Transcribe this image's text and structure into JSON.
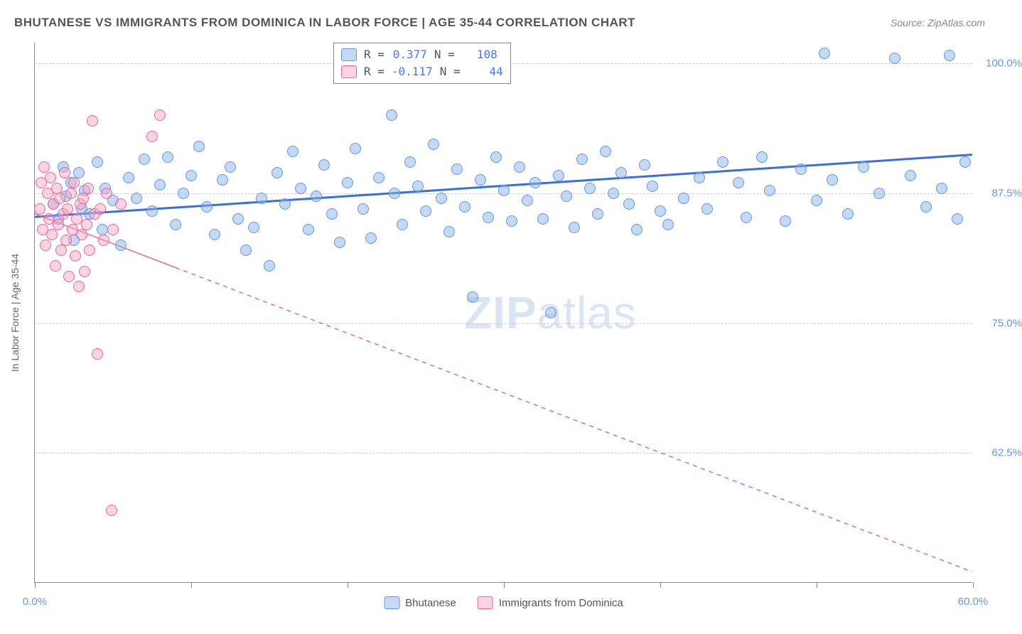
{
  "header": {
    "title": "BHUTANESE VS IMMIGRANTS FROM DOMINICA IN LABOR FORCE | AGE 35-44 CORRELATION CHART",
    "source": "Source: ZipAtlas.com"
  },
  "watermark": {
    "prefix": "ZIP",
    "suffix": "atlas"
  },
  "chart": {
    "type": "scatter",
    "background_color": "#ffffff",
    "grid_color": "#cccccc",
    "axis_color": "#888888",
    "y_axis_label": "In Labor Force | Age 35-44",
    "y_axis_label_fontsize": 14,
    "xlim": [
      0,
      60
    ],
    "ylim": [
      50,
      102
    ],
    "x_ticks": [
      0,
      10,
      20,
      30,
      40,
      50,
      60
    ],
    "x_tick_labels": {
      "0": "0.0%",
      "60": "60.0%"
    },
    "y_gridlines": [
      62.5,
      75.0,
      87.5,
      100.0
    ],
    "y_tick_labels": [
      "62.5%",
      "75.0%",
      "87.5%",
      "100.0%"
    ],
    "tick_label_color": "#6495ED",
    "point_radius": 8,
    "series": [
      {
        "name": "Bhutanese",
        "color_fill": "rgba(135,180,235,0.5)",
        "color_stroke": "#6495ED",
        "R": "0.377",
        "N": "108",
        "trend": {
          "x1": 0,
          "y1": 85.2,
          "x2": 60,
          "y2": 91.2,
          "color": "#3B6FD8",
          "width": 3,
          "dash": "none"
        },
        "points": [
          [
            1.2,
            86.5
          ],
          [
            1.5,
            85.0
          ],
          [
            1.8,
            90.0
          ],
          [
            2.0,
            87.2
          ],
          [
            2.3,
            88.5
          ],
          [
            2.5,
            83.0
          ],
          [
            2.8,
            89.5
          ],
          [
            3.0,
            86.0
          ],
          [
            3.2,
            87.8
          ],
          [
            3.5,
            85.5
          ],
          [
            4.0,
            90.5
          ],
          [
            4.3,
            84.0
          ],
          [
            4.5,
            88.0
          ],
          [
            5.0,
            86.8
          ],
          [
            5.5,
            82.5
          ],
          [
            6.0,
            89.0
          ],
          [
            6.5,
            87.0
          ],
          [
            7.0,
            90.8
          ],
          [
            7.5,
            85.8
          ],
          [
            8.0,
            88.3
          ],
          [
            8.5,
            91.0
          ],
          [
            9.0,
            84.5
          ],
          [
            9.5,
            87.5
          ],
          [
            10.0,
            89.2
          ],
          [
            10.5,
            92.0
          ],
          [
            11.0,
            86.2
          ],
          [
            11.5,
            83.5
          ],
          [
            12.0,
            88.8
          ],
          [
            12.5,
            90.0
          ],
          [
            13.0,
            85.0
          ],
          [
            13.5,
            82.0
          ],
          [
            14.0,
            84.2
          ],
          [
            14.5,
            87.0
          ],
          [
            15.0,
            80.5
          ],
          [
            15.5,
            89.5
          ],
          [
            16.0,
            86.5
          ],
          [
            16.5,
            91.5
          ],
          [
            17.0,
            88.0
          ],
          [
            17.5,
            84.0
          ],
          [
            18.0,
            87.2
          ],
          [
            18.5,
            90.2
          ],
          [
            19.0,
            85.5
          ],
          [
            19.5,
            82.8
          ],
          [
            20.0,
            88.5
          ],
          [
            20.5,
            91.8
          ],
          [
            21.0,
            86.0
          ],
          [
            21.5,
            83.2
          ],
          [
            22.0,
            89.0
          ],
          [
            22.8,
            95.0
          ],
          [
            23.0,
            87.5
          ],
          [
            23.5,
            84.5
          ],
          [
            24.0,
            90.5
          ],
          [
            24.5,
            88.2
          ],
          [
            25.0,
            85.8
          ],
          [
            25.5,
            92.2
          ],
          [
            26.0,
            87.0
          ],
          [
            26.5,
            83.8
          ],
          [
            27.0,
            89.8
          ],
          [
            27.5,
            86.2
          ],
          [
            28.0,
            77.5
          ],
          [
            28.5,
            88.8
          ],
          [
            29.0,
            85.2
          ],
          [
            29.5,
            91.0
          ],
          [
            30.0,
            87.8
          ],
          [
            30.5,
            84.8
          ],
          [
            31.0,
            90.0
          ],
          [
            31.5,
            86.8
          ],
          [
            32.0,
            88.5
          ],
          [
            32.5,
            85.0
          ],
          [
            33.0,
            76.0
          ],
          [
            33.5,
            89.2
          ],
          [
            34.0,
            87.2
          ],
          [
            34.5,
            84.2
          ],
          [
            35.0,
            90.8
          ],
          [
            35.5,
            88.0
          ],
          [
            36.0,
            85.5
          ],
          [
            36.5,
            91.5
          ],
          [
            37.0,
            87.5
          ],
          [
            37.5,
            89.5
          ],
          [
            38.0,
            86.5
          ],
          [
            38.5,
            84.0
          ],
          [
            39.0,
            90.2
          ],
          [
            39.5,
            88.2
          ],
          [
            40.0,
            85.8
          ],
          [
            40.5,
            84.5
          ],
          [
            41.5,
            87.0
          ],
          [
            42.5,
            89.0
          ],
          [
            43.0,
            86.0
          ],
          [
            44.0,
            90.5
          ],
          [
            45.0,
            88.5
          ],
          [
            45.5,
            85.2
          ],
          [
            46.5,
            91.0
          ],
          [
            47.0,
            87.8
          ],
          [
            48.0,
            84.8
          ],
          [
            49.0,
            89.8
          ],
          [
            50.0,
            86.8
          ],
          [
            50.5,
            101.0
          ],
          [
            51.0,
            88.8
          ],
          [
            52.0,
            85.5
          ],
          [
            53.0,
            90.0
          ],
          [
            54.0,
            87.5
          ],
          [
            55.0,
            100.5
          ],
          [
            56.0,
            89.2
          ],
          [
            57.0,
            86.2
          ],
          [
            58.0,
            88.0
          ],
          [
            58.5,
            100.8
          ],
          [
            59.0,
            85.0
          ],
          [
            59.5,
            90.5
          ]
        ]
      },
      {
        "name": "Immigrants from Dominica",
        "color_fill": "rgba(255,160,190,0.45)",
        "color_stroke": "#ED6495",
        "R": "-0.117",
        "N": "44",
        "trend": {
          "x1": 0,
          "y1": 85.5,
          "x2": 60,
          "y2": 51.0,
          "color": "#ED6495",
          "width": 1.5,
          "dash": "6,6",
          "solid_until_x": 9
        },
        "points": [
          [
            0.3,
            86.0
          ],
          [
            0.4,
            88.5
          ],
          [
            0.5,
            84.0
          ],
          [
            0.6,
            90.0
          ],
          [
            0.7,
            82.5
          ],
          [
            0.8,
            87.5
          ],
          [
            0.9,
            85.0
          ],
          [
            1.0,
            89.0
          ],
          [
            1.1,
            83.5
          ],
          [
            1.2,
            86.5
          ],
          [
            1.3,
            80.5
          ],
          [
            1.4,
            88.0
          ],
          [
            1.5,
            84.5
          ],
          [
            1.6,
            87.0
          ],
          [
            1.7,
            82.0
          ],
          [
            1.8,
            85.5
          ],
          [
            1.9,
            89.5
          ],
          [
            2.0,
            83.0
          ],
          [
            2.1,
            86.0
          ],
          [
            2.2,
            79.5
          ],
          [
            2.3,
            87.5
          ],
          [
            2.4,
            84.0
          ],
          [
            2.5,
            88.5
          ],
          [
            2.6,
            81.5
          ],
          [
            2.7,
            85.0
          ],
          [
            2.8,
            78.5
          ],
          [
            2.9,
            86.5
          ],
          [
            3.0,
            83.5
          ],
          [
            3.1,
            87.0
          ],
          [
            3.2,
            80.0
          ],
          [
            3.3,
            84.5
          ],
          [
            3.4,
            88.0
          ],
          [
            3.5,
            82.0
          ],
          [
            3.7,
            94.5
          ],
          [
            3.8,
            85.5
          ],
          [
            4.0,
            72.0
          ],
          [
            4.9,
            57.0
          ],
          [
            4.2,
            86.0
          ],
          [
            4.4,
            83.0
          ],
          [
            4.6,
            87.5
          ],
          [
            7.5,
            93.0
          ],
          [
            8.0,
            95.0
          ],
          [
            5.0,
            84.0
          ],
          [
            5.5,
            86.5
          ]
        ]
      }
    ],
    "legend": {
      "items": [
        {
          "label": "Bhutanese",
          "swatch": "blue"
        },
        {
          "label": "Immigrants from Dominica",
          "swatch": "pink"
        }
      ]
    }
  }
}
